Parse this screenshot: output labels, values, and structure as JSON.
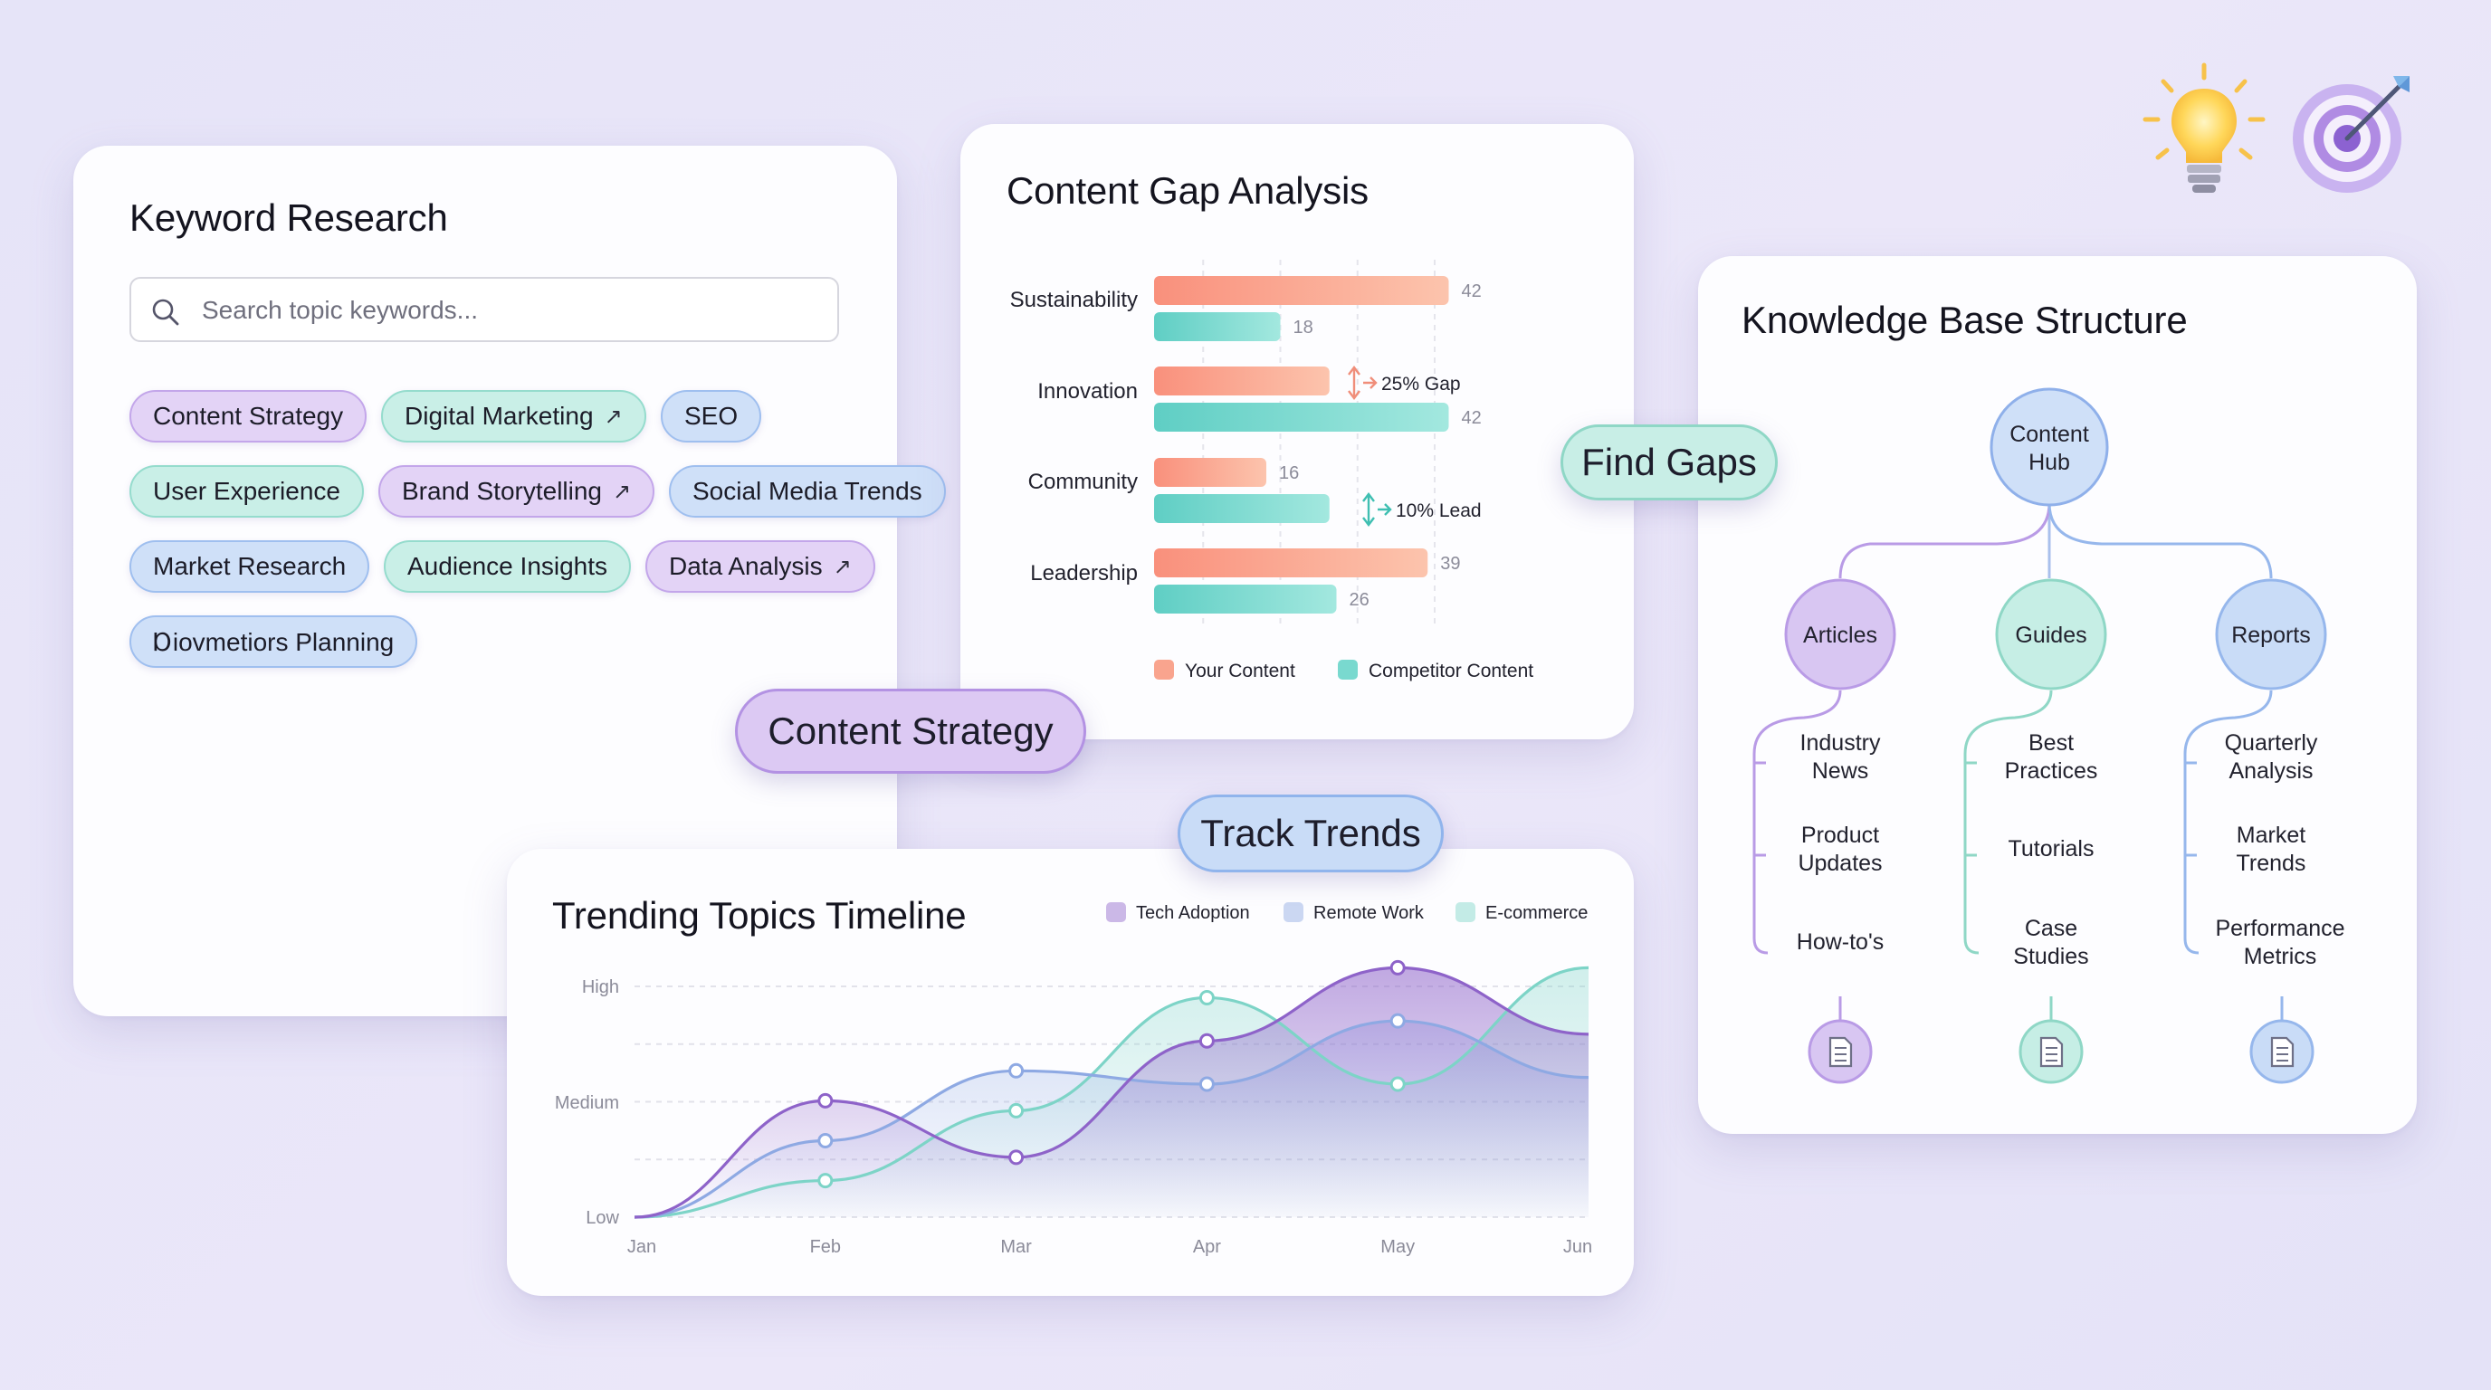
{
  "keyword_research": {
    "title": "Keyword Research",
    "search_placeholder": "Search topic keywords...",
    "tags": [
      {
        "label": "Content Strategy",
        "color": "purple",
        "external": false
      },
      {
        "label": "Digital Marketing",
        "color": "teal",
        "external": true
      },
      {
        "label": "SEO",
        "color": "blue",
        "external": false
      },
      {
        "label": "User Experience",
        "color": "teal",
        "external": false
      },
      {
        "label": "Brand Storytelling",
        "color": "purple",
        "external": true
      },
      {
        "label": "Social Media Trends",
        "color": "blue",
        "external": false
      },
      {
        "label": "Market Research",
        "color": "blue",
        "external": false
      },
      {
        "label": "Audience Insights",
        "color": "teal",
        "external": false
      },
      {
        "label": "Data Analysis",
        "color": "purple",
        "external": true
      },
      {
        "label": "Ɒiovmetiors Planning",
        "color": "blue",
        "external": false
      }
    ],
    "external_icon": "↗"
  },
  "content_gap": {
    "title": "Content Gap Analysis",
    "chart_data": {
      "type": "bar",
      "orientation": "horizontal",
      "categories": [
        "Sustainability",
        "Innovation",
        "Community",
        "Leadership"
      ],
      "series": [
        {
          "name": "Your Content",
          "values": [
            42,
            25,
            16,
            39
          ],
          "color": "#f9a48e"
        },
        {
          "name": "Competitor Content",
          "values": [
            18,
            42,
            25,
            26
          ],
          "color": "#79d9cf"
        }
      ],
      "value_labels": [
        [
          "42",
          "18"
        ],
        [
          "",
          "42"
        ],
        [
          "16",
          ""
        ],
        [
          "39",
          "26"
        ]
      ],
      "annotations": [
        "25% Gap",
        "10% Lead"
      ],
      "xlim": [
        0,
        44
      ],
      "legend": "bottom"
    }
  },
  "knowledge_base": {
    "title": "Knowledge Base Structure",
    "root": "Content Hub",
    "branches": [
      {
        "label": "Articles",
        "color": "#d8c6f2",
        "stroke": "#b99be6",
        "items": [
          "Industry News",
          "Product Updates",
          "How-to's"
        ]
      },
      {
        "label": "Guides",
        "color": "#c6eee5",
        "stroke": "#8fd7c6",
        "items": [
          "Best Practices",
          "Tutorials",
          "Case Studies"
        ]
      },
      {
        "label": "Reports",
        "color": "#c9dcf7",
        "stroke": "#96b7ec",
        "items": [
          "Quarterly Analysis",
          "Market Trends",
          "Performance Metrics"
        ]
      }
    ],
    "doc_icon": "document-icon"
  },
  "timeline": {
    "title": "Trending Topics Timeline",
    "chart_data": {
      "type": "area",
      "x": [
        "Jan",
        "Feb",
        "Mar",
        "Apr",
        "May",
        "Jun"
      ],
      "y_ticks": [
        "Low",
        "Medium",
        "High"
      ],
      "ylim": [
        0,
        4
      ],
      "series": [
        {
          "name": "Tech Adoption",
          "values": [
            0,
            1.75,
            0.9,
            2.65,
            3.75,
            2.75
          ],
          "color": "#8e63c9"
        },
        {
          "name": "Remote Work",
          "values": [
            0,
            1.15,
            2.2,
            2.0,
            2.95,
            2.1
          ],
          "color": "#8ea9e3"
        },
        {
          "name": "E-commerce",
          "values": [
            0,
            0.55,
            1.6,
            3.3,
            2.0,
            3.75
          ],
          "color": "#7dd4c7"
        }
      ],
      "legend": "top-right",
      "grid": true
    }
  },
  "pills": {
    "strategy": "Content Strategy",
    "trends": "Track Trends",
    "gaps": "Find Gaps"
  },
  "decor": {
    "lightbulb": "lightbulb-icon",
    "target": "target-icon"
  }
}
